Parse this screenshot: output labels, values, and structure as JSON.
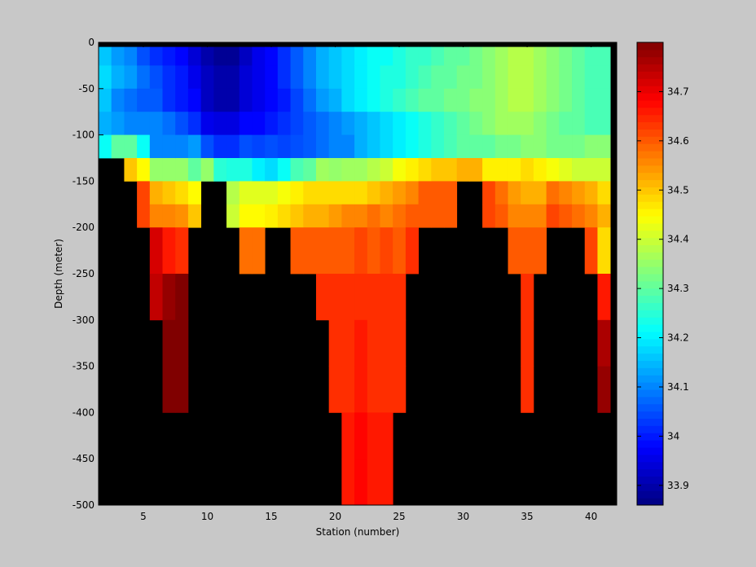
{
  "chart_data": {
    "type": "heatmap",
    "title": "",
    "xlabel": "Station (number)",
    "ylabel": "Depth (meter)",
    "xlim": [
      1.5,
      42.0
    ],
    "ylim": [
      -500,
      0
    ],
    "x_ticks": [
      5,
      10,
      15,
      20,
      25,
      30,
      35,
      40
    ],
    "y_ticks": [
      0,
      -50,
      -100,
      -150,
      -200,
      -250,
      -300,
      -350,
      -400,
      -450,
      -500
    ],
    "colorbar": {
      "colormap": "jet",
      "clim": [
        33.86,
        34.8
      ],
      "ticks": [
        33.9,
        34,
        34.1,
        34.2,
        34.3,
        34.4,
        34.5,
        34.6,
        34.7
      ]
    },
    "background_color": "#000000",
    "x": [
      2,
      42
    ],
    "depth_levels": [
      -5,
      -25,
      -50,
      -75,
      -100,
      -125,
      -150,
      -175,
      -200,
      -250,
      -300,
      -350,
      -400,
      -450,
      -500
    ],
    "station_profiles": [
      {
        "station": 2,
        "max_depth": -125,
        "values": [
          34.1,
          34.16,
          34.18,
          34.16,
          34.14,
          34.22,
          null,
          null,
          null,
          null,
          null,
          null,
          null,
          null,
          null
        ]
      },
      {
        "station": 3,
        "max_depth": -125,
        "values": [
          34.08,
          34.12,
          34.14,
          34.1,
          34.12,
          34.3,
          null,
          null,
          null,
          null,
          null,
          null,
          null,
          null,
          null
        ]
      },
      {
        "station": 4,
        "max_depth": -150,
        "values": [
          34.05,
          34.1,
          34.12,
          34.08,
          34.1,
          34.3,
          34.5,
          null,
          null,
          null,
          null,
          null,
          null,
          null,
          null
        ]
      },
      {
        "station": 5,
        "max_depth": -200,
        "values": [
          34.04,
          34.05,
          34.08,
          34.06,
          34.1,
          34.22,
          34.45,
          34.62,
          34.62,
          null,
          null,
          null,
          null,
          null,
          null
        ]
      },
      {
        "station": 6,
        "max_depth": -300,
        "values": [
          34.0,
          34.02,
          34.05,
          34.06,
          34.1,
          34.1,
          34.35,
          34.52,
          34.56,
          34.72,
          34.74,
          null,
          null,
          null,
          null
        ]
      },
      {
        "station": 7,
        "max_depth": -400,
        "values": [
          33.98,
          34.0,
          34.02,
          34.02,
          34.08,
          34.1,
          34.35,
          34.5,
          34.56,
          34.66,
          34.78,
          34.8,
          34.8,
          null,
          null
        ]
      },
      {
        "station": 8,
        "max_depth": -400,
        "values": [
          33.96,
          33.98,
          34.0,
          34.0,
          34.05,
          34.1,
          34.35,
          34.48,
          34.55,
          34.64,
          34.8,
          34.8,
          34.8,
          null,
          null
        ]
      },
      {
        "station": 9,
        "max_depth": -200,
        "values": [
          33.94,
          33.94,
          33.96,
          33.98,
          34.02,
          34.12,
          34.3,
          34.45,
          34.5,
          null,
          null,
          null,
          null,
          null,
          null
        ]
      },
      {
        "station": 10,
        "max_depth": -150,
        "values": [
          33.9,
          33.9,
          33.92,
          33.92,
          33.96,
          34.05,
          34.35,
          null,
          null,
          null,
          null,
          null,
          null,
          null,
          null
        ]
      },
      {
        "station": 11,
        "max_depth": -150,
        "values": [
          33.88,
          33.88,
          33.9,
          33.9,
          33.95,
          34.02,
          34.25,
          null,
          null,
          null,
          null,
          null,
          null,
          null,
          null
        ]
      },
      {
        "station": 12,
        "max_depth": -200,
        "values": [
          33.88,
          33.88,
          33.9,
          33.9,
          33.95,
          34.02,
          34.24,
          34.38,
          34.4,
          null,
          null,
          null,
          null,
          null,
          null
        ]
      },
      {
        "station": 13,
        "max_depth": -250,
        "values": [
          33.9,
          33.92,
          33.94,
          33.94,
          33.98,
          34.05,
          34.24,
          34.42,
          34.45,
          34.58,
          null,
          null,
          null,
          null,
          null
        ]
      },
      {
        "station": 14,
        "max_depth": -250,
        "values": [
          33.94,
          33.96,
          33.96,
          33.96,
          33.98,
          34.04,
          34.2,
          34.42,
          34.45,
          34.58,
          null,
          null,
          null,
          null,
          null
        ]
      },
      {
        "station": 15,
        "max_depth": -200,
        "values": [
          33.96,
          33.98,
          33.98,
          33.98,
          34.0,
          34.05,
          34.18,
          34.42,
          34.46,
          null,
          null,
          null,
          null,
          null,
          null
        ]
      },
      {
        "station": 16,
        "max_depth": -200,
        "values": [
          34.0,
          34.02,
          34.02,
          34.0,
          34.02,
          34.04,
          34.22,
          34.44,
          34.48,
          null,
          null,
          null,
          null,
          null,
          null
        ]
      },
      {
        "station": 17,
        "max_depth": -250,
        "values": [
          34.04,
          34.06,
          34.06,
          34.04,
          34.04,
          34.05,
          34.28,
          34.46,
          34.5,
          34.6,
          null,
          null,
          null,
          null,
          null
        ]
      },
      {
        "station": 18,
        "max_depth": -250,
        "values": [
          34.08,
          34.1,
          34.1,
          34.08,
          34.06,
          34.06,
          34.3,
          34.48,
          34.52,
          34.6,
          null,
          null,
          null,
          null,
          null
        ]
      },
      {
        "station": 19,
        "max_depth": -300,
        "values": [
          34.1,
          34.14,
          34.14,
          34.12,
          34.08,
          34.08,
          34.36,
          34.48,
          34.52,
          34.6,
          34.64,
          null,
          null,
          null,
          null
        ]
      },
      {
        "station": 20,
        "max_depth": -400,
        "values": [
          34.12,
          34.16,
          34.16,
          34.14,
          34.1,
          34.1,
          34.35,
          34.48,
          34.54,
          34.6,
          34.64,
          34.64,
          34.64,
          null,
          null
        ]
      },
      {
        "station": 21,
        "max_depth": -500,
        "values": [
          34.14,
          34.18,
          34.18,
          34.18,
          34.12,
          34.1,
          34.36,
          34.48,
          34.56,
          34.6,
          34.64,
          34.64,
          34.64,
          34.66,
          34.66
        ]
      },
      {
        "station": 22,
        "max_depth": -500,
        "values": [
          34.16,
          34.2,
          34.2,
          34.2,
          34.14,
          34.14,
          34.36,
          34.48,
          34.56,
          34.62,
          34.64,
          34.66,
          34.66,
          34.68,
          34.68
        ]
      },
      {
        "station": 23,
        "max_depth": -500,
        "values": [
          34.18,
          34.22,
          34.22,
          34.22,
          34.16,
          34.16,
          34.38,
          34.5,
          34.58,
          34.6,
          34.64,
          34.64,
          34.64,
          34.66,
          34.66
        ]
      },
      {
        "station": 24,
        "max_depth": -500,
        "values": [
          34.2,
          34.22,
          34.24,
          34.24,
          34.18,
          34.18,
          34.4,
          34.52,
          34.56,
          34.62,
          34.64,
          34.64,
          34.64,
          34.66,
          34.66
        ]
      },
      {
        "station": 25,
        "max_depth": -400,
        "values": [
          34.2,
          34.24,
          34.24,
          34.26,
          34.2,
          34.2,
          34.44,
          34.54,
          34.58,
          34.6,
          34.64,
          34.64,
          34.64,
          null,
          null
        ]
      },
      {
        "station": 26,
        "max_depth": -250,
        "values": [
          34.22,
          34.26,
          34.26,
          34.28,
          34.22,
          34.22,
          34.46,
          34.56,
          34.6,
          34.64,
          null,
          null,
          null,
          null,
          null
        ]
      },
      {
        "station": 27,
        "max_depth": -200,
        "values": [
          34.22,
          34.26,
          34.28,
          34.3,
          34.24,
          34.24,
          34.48,
          34.6,
          34.6,
          null,
          null,
          null,
          null,
          null,
          null
        ]
      },
      {
        "station": 28,
        "max_depth": -200,
        "values": [
          34.24,
          34.28,
          34.3,
          34.3,
          34.26,
          34.26,
          34.5,
          34.6,
          34.6,
          null,
          null,
          null,
          null,
          null,
          null
        ]
      },
      {
        "station": 29,
        "max_depth": -200,
        "values": [
          34.26,
          34.3,
          34.3,
          34.32,
          34.28,
          34.28,
          34.5,
          34.6,
          34.6,
          null,
          null,
          null,
          null,
          null,
          null
        ]
      },
      {
        "station": 30,
        "max_depth": -150,
        "values": [
          34.28,
          34.3,
          34.32,
          34.32,
          34.3,
          34.3,
          34.52,
          null,
          null,
          null,
          null,
          null,
          null,
          null,
          null
        ]
      },
      {
        "station": 31,
        "max_depth": -150,
        "values": [
          34.3,
          34.32,
          34.32,
          34.34,
          34.32,
          34.3,
          34.52,
          null,
          null,
          null,
          null,
          null,
          null,
          null,
          null
        ]
      },
      {
        "station": 32,
        "max_depth": -200,
        "values": [
          34.32,
          34.34,
          34.34,
          34.34,
          34.34,
          34.3,
          34.46,
          34.62,
          34.62,
          null,
          null,
          null,
          null,
          null,
          null
        ]
      },
      {
        "station": 33,
        "max_depth": -200,
        "values": [
          34.34,
          34.36,
          34.36,
          34.36,
          34.36,
          34.32,
          34.46,
          34.58,
          34.6,
          null,
          null,
          null,
          null,
          null,
          null
        ]
      },
      {
        "station": 34,
        "max_depth": -250,
        "values": [
          34.36,
          34.38,
          34.38,
          34.38,
          34.36,
          34.32,
          34.46,
          34.54,
          34.56,
          34.6,
          null,
          null,
          null,
          null,
          null
        ]
      },
      {
        "station": 35,
        "max_depth": -400,
        "values": [
          34.36,
          34.38,
          34.38,
          34.38,
          34.36,
          34.34,
          34.48,
          34.52,
          34.56,
          34.6,
          34.64,
          34.64,
          34.64,
          null,
          null
        ]
      },
      {
        "station": 36,
        "max_depth": -250,
        "values": [
          34.34,
          34.36,
          34.36,
          34.36,
          34.34,
          34.34,
          34.46,
          34.52,
          34.56,
          34.6,
          null,
          null,
          null,
          null,
          null
        ]
      },
      {
        "station": 37,
        "max_depth": -200,
        "values": [
          34.32,
          34.34,
          34.34,
          34.34,
          34.32,
          34.32,
          34.44,
          34.58,
          34.62,
          null,
          null,
          null,
          null,
          null,
          null
        ]
      },
      {
        "station": 38,
        "max_depth": -200,
        "values": [
          34.3,
          34.32,
          34.32,
          34.32,
          34.3,
          34.32,
          34.42,
          34.56,
          34.6,
          null,
          null,
          null,
          null,
          null,
          null
        ]
      },
      {
        "station": 39,
        "max_depth": -200,
        "values": [
          34.28,
          34.3,
          34.3,
          34.3,
          34.3,
          34.32,
          34.4,
          34.54,
          34.58,
          null,
          null,
          null,
          null,
          null,
          null
        ]
      },
      {
        "station": 40,
        "max_depth": -250,
        "values": [
          34.26,
          34.28,
          34.28,
          34.28,
          34.28,
          34.34,
          34.4,
          34.52,
          34.56,
          34.62,
          null,
          null,
          null,
          null,
          null
        ]
      },
      {
        "station": 41,
        "max_depth": -400,
        "values": [
          34.26,
          34.28,
          34.28,
          34.28,
          34.28,
          34.34,
          34.4,
          34.48,
          34.52,
          34.48,
          34.66,
          34.76,
          34.78,
          null,
          null
        ]
      }
    ],
    "grid": false,
    "legend": "colorbar-right"
  }
}
